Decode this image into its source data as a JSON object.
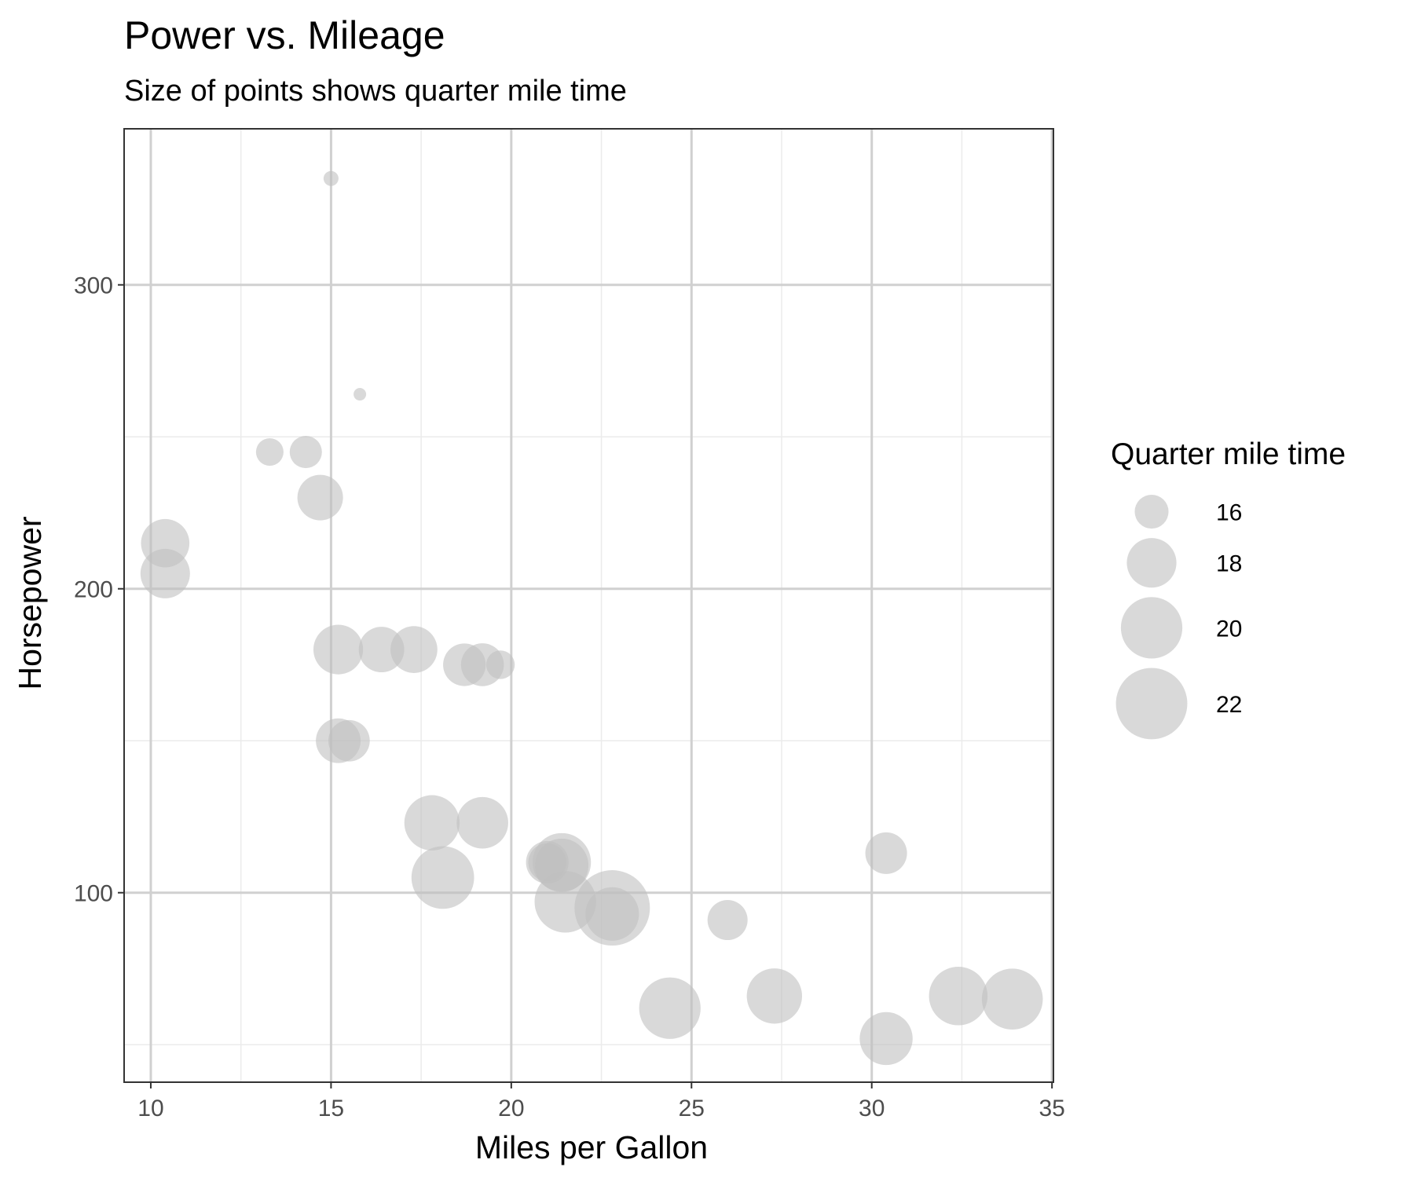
{
  "colors": {
    "point": "#bfbfbf",
    "point_opacity": 0.6,
    "major_grid": "#d0d0d0",
    "minor_grid": "#ebebeb",
    "panel_border": "#333333",
    "tick_text": "#4d4d4d"
  },
  "chart_data": {
    "type": "scatter",
    "title": "Power vs. Mileage",
    "subtitle": "Size of points shows quarter mile time",
    "xlabel": "Miles per Gallon",
    "ylabel": "Horsepower",
    "xlim": [
      9.26,
      35.04
    ],
    "ylim": [
      37.65,
      351.35
    ],
    "xticks": [
      10,
      15,
      20,
      25,
      30,
      35
    ],
    "xtick_labels": [
      "10",
      "15",
      "20",
      "25",
      "30",
      "35"
    ],
    "x_minor_ticks": [
      12.5,
      17.5,
      22.5,
      27.5,
      32.5
    ],
    "yticks": [
      100,
      200,
      300
    ],
    "ytick_labels": [
      "100",
      "200",
      "300"
    ],
    "y_minor_ticks": [
      50,
      150,
      250
    ],
    "grid": true,
    "legend": {
      "title": "Quarter mile time",
      "position": "right",
      "sizes": [
        16,
        18,
        20,
        22
      ],
      "labels": [
        "16",
        "18",
        "20",
        "22"
      ]
    },
    "size_variable": "Quarter mile time",
    "size_range": [
      14.5,
      22.9
    ],
    "points": [
      {
        "x": 21.0,
        "y": 110,
        "size": 16.46
      },
      {
        "x": 21.0,
        "y": 110,
        "size": 17.02
      },
      {
        "x": 22.8,
        "y": 93,
        "size": 18.61
      },
      {
        "x": 21.4,
        "y": 110,
        "size": 19.44
      },
      {
        "x": 18.7,
        "y": 175,
        "size": 17.02
      },
      {
        "x": 18.1,
        "y": 105,
        "size": 20.22
      },
      {
        "x": 14.3,
        "y": 245,
        "size": 15.84
      },
      {
        "x": 24.4,
        "y": 62,
        "size": 20.0
      },
      {
        "x": 22.8,
        "y": 95,
        "size": 22.9
      },
      {
        "x": 19.2,
        "y": 123,
        "size": 18.3
      },
      {
        "x": 17.8,
        "y": 123,
        "size": 18.9
      },
      {
        "x": 16.4,
        "y": 180,
        "size": 17.4
      },
      {
        "x": 17.3,
        "y": 180,
        "size": 17.6
      },
      {
        "x": 15.2,
        "y": 180,
        "size": 18.0
      },
      {
        "x": 10.4,
        "y": 205,
        "size": 17.98
      },
      {
        "x": 10.4,
        "y": 215,
        "size": 17.82
      },
      {
        "x": 14.7,
        "y": 230,
        "size": 17.42
      },
      {
        "x": 32.4,
        "y": 66,
        "size": 19.47
      },
      {
        "x": 30.4,
        "y": 52,
        "size": 18.52
      },
      {
        "x": 33.9,
        "y": 65,
        "size": 19.9
      },
      {
        "x": 21.5,
        "y": 97,
        "size": 20.01
      },
      {
        "x": 15.5,
        "y": 150,
        "size": 16.87
      },
      {
        "x": 15.2,
        "y": 150,
        "size": 17.3
      },
      {
        "x": 13.3,
        "y": 245,
        "size": 15.41
      },
      {
        "x": 19.2,
        "y": 175,
        "size": 17.05
      },
      {
        "x": 27.3,
        "y": 66,
        "size": 18.9
      },
      {
        "x": 26.0,
        "y": 91,
        "size": 16.7
      },
      {
        "x": 30.4,
        "y": 113,
        "size": 16.9
      },
      {
        "x": 15.8,
        "y": 264,
        "size": 14.5
      },
      {
        "x": 19.7,
        "y": 175,
        "size": 15.5
      },
      {
        "x": 15.0,
        "y": 335,
        "size": 14.6
      },
      {
        "x": 21.4,
        "y": 109,
        "size": 18.6
      }
    ]
  }
}
